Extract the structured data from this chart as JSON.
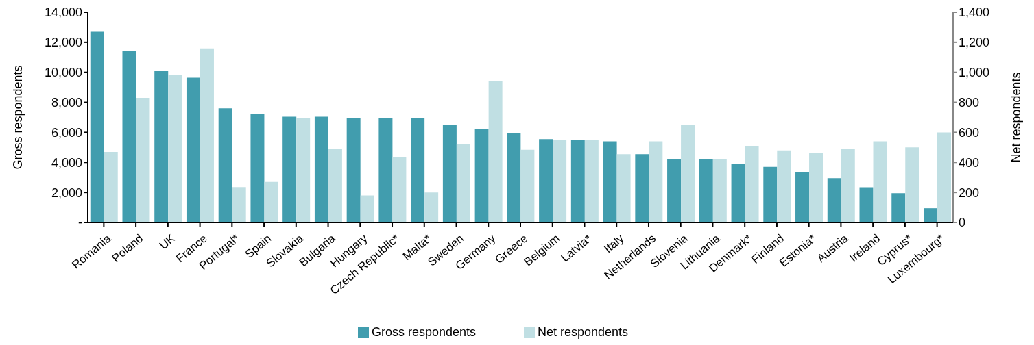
{
  "chart_data": {
    "type": "bar",
    "xlabel": null,
    "ylabel": "Gross respondents",
    "y2label": "Net respondents",
    "categories": [
      "Romania",
      "Poland",
      "UK",
      "France",
      "Portugal*",
      "Spain",
      "Slovakia",
      "Bulgaria",
      "Hungary",
      "Czech Republic*",
      "Malta*",
      "Sweden",
      "Germany",
      "Greece",
      "Belgium",
      "Latvia*",
      "Italy",
      "Netherlands",
      "Slovenia",
      "Lithuania",
      "Denmark*",
      "Finland",
      "Estonia*",
      "Austria",
      "Ireland",
      "Cyprus*",
      "Luxembourg*"
    ],
    "series": [
      {
        "name": "Gross respondents",
        "color": "#419dae",
        "values": [
          12700,
          11400,
          10100,
          9650,
          7600,
          7250,
          7050,
          7050,
          6950,
          6950,
          6950,
          6500,
          6200,
          5950,
          5550,
          5500,
          5400,
          4550,
          4200,
          4200,
          3900,
          3700,
          3350,
          2950,
          2350,
          1950,
          950
        ]
      },
      {
        "name": "Net respondents",
        "color": "#c0dfe3",
        "axis": "y2",
        "values": [
          470,
          830,
          985,
          1160,
          236,
          270,
          697,
          490,
          180,
          435,
          200,
          520,
          940,
          485,
          550,
          550,
          455,
          540,
          650,
          420,
          510,
          480,
          465,
          490,
          540,
          500,
          600
        ]
      }
    ],
    "ylim": [
      0,
      14000
    ],
    "yticks": [
      {
        "value": 0,
        "label": "-"
      },
      {
        "value": 2000,
        "label": "2,000"
      },
      {
        "value": 4000,
        "label": "4,000"
      },
      {
        "value": 6000,
        "label": "6,000"
      },
      {
        "value": 8000,
        "label": "8,000"
      },
      {
        "value": 10000,
        "label": "10,000"
      },
      {
        "value": 12000,
        "label": "12,000"
      },
      {
        "value": 14000,
        "label": "14,000"
      }
    ],
    "y2lim": [
      0,
      1400
    ],
    "y2ticks": [
      0,
      200,
      400,
      600,
      800,
      {
        "value": 1000,
        "label": "1,000"
      },
      {
        "value": 1200,
        "label": "1,200"
      },
      {
        "value": 1400,
        "label": "1,400"
      }
    ],
    "legend": "bottom"
  }
}
